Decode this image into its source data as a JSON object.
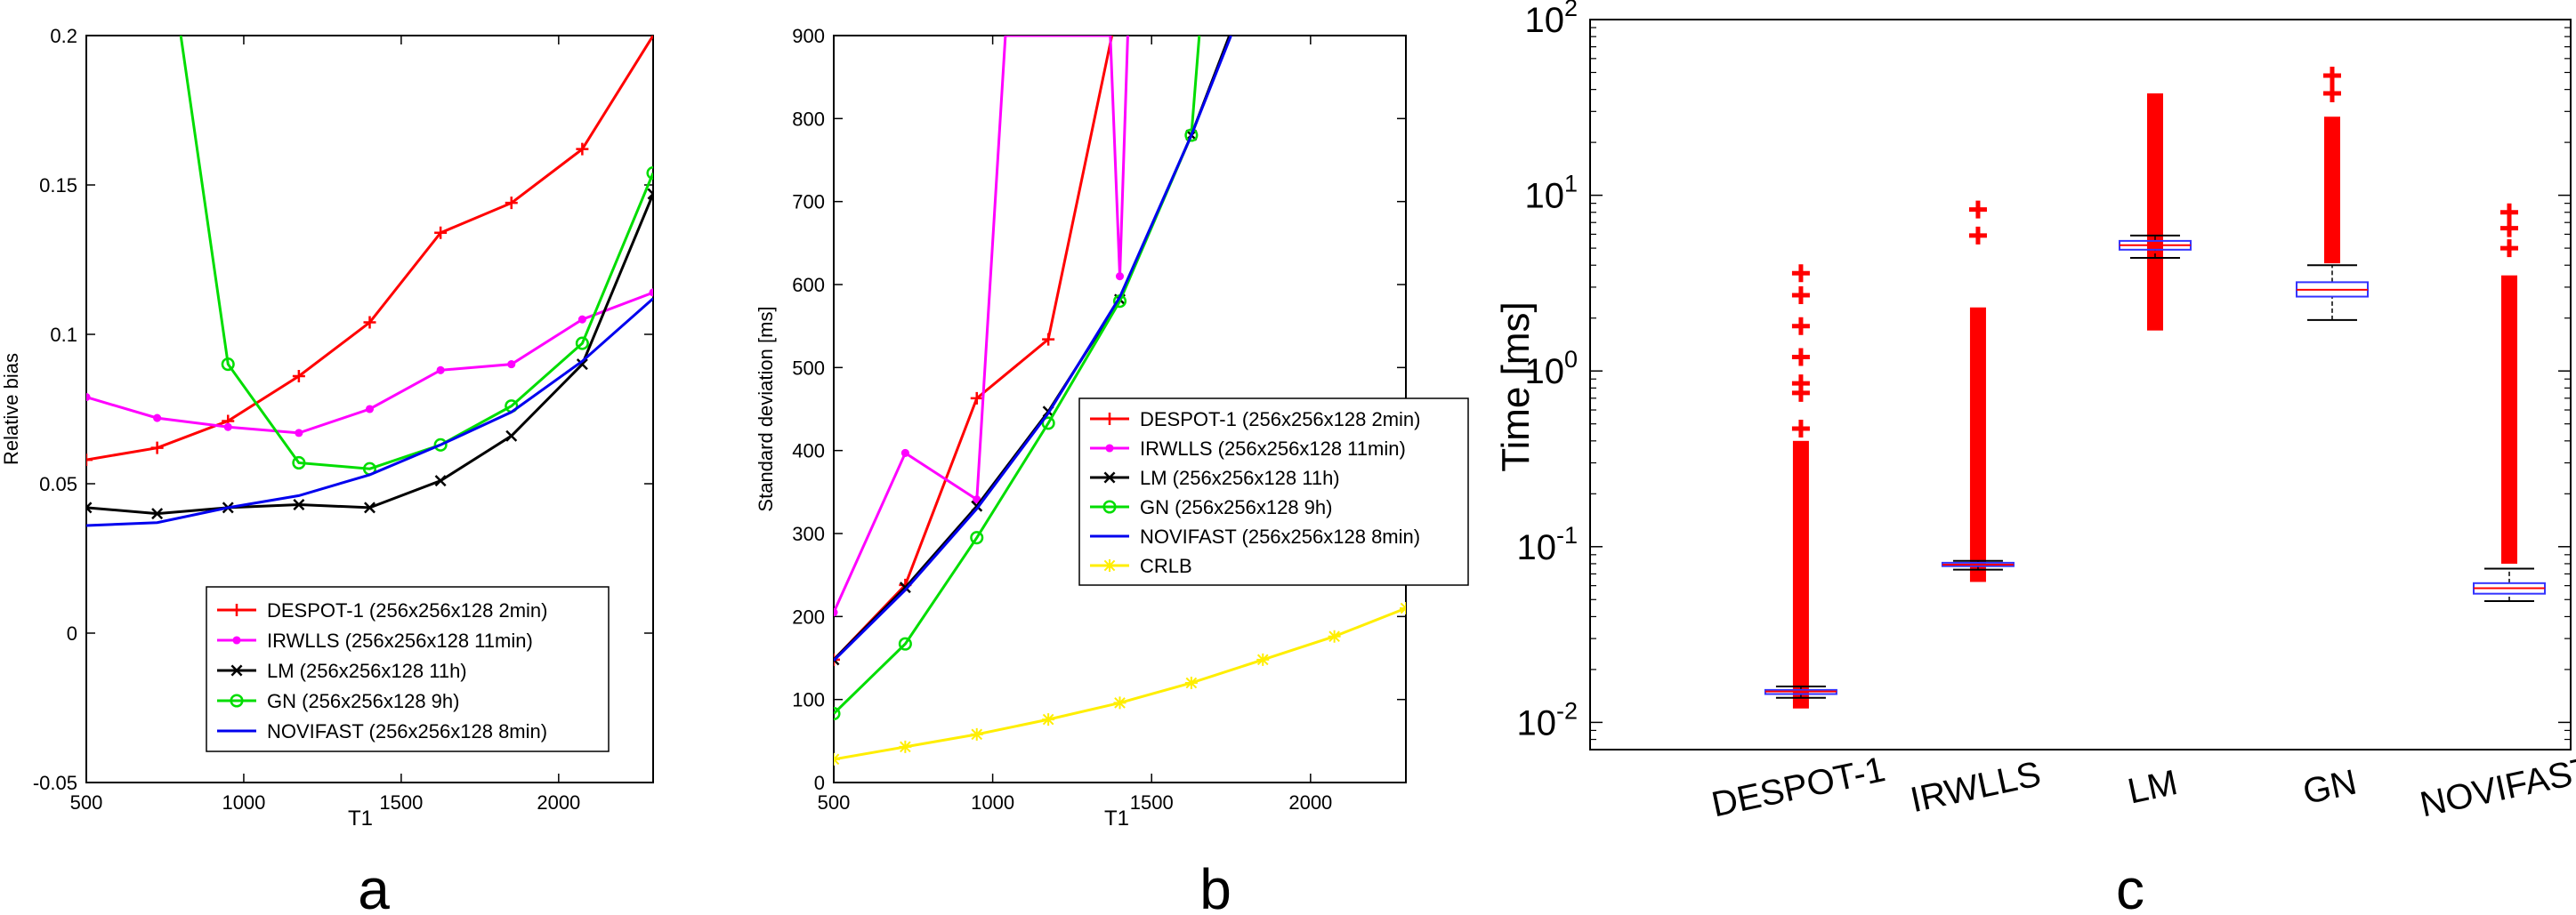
{
  "chart_data": [
    {
      "panel_label": "a",
      "type": "line",
      "xlabel": "T1",
      "ylabel": "Relative bias",
      "xlim": [
        500,
        2300
      ],
      "ylim": [
        -0.05,
        0.2
      ],
      "xticks": [
        "500",
        "1000",
        "1500",
        "2000"
      ],
      "yticks": [
        "-0.05",
        "0",
        "0.05",
        "0.1",
        "0.15",
        "0.2"
      ],
      "legend_position": "bottom-right",
      "series": [
        {
          "name": "DESPOT-1 (256x256x128 2min)",
          "color": "#ff0000",
          "marker": "plus",
          "x": [
            500,
            725,
            950,
            1175,
            1400,
            1625,
            1850,
            2075,
            2300
          ],
          "y": [
            0.058,
            0.062,
            0.071,
            0.086,
            0.104,
            0.134,
            0.144,
            0.162,
            0.2
          ]
        },
        {
          "name": "IRWLLS (256x256x128 11min)",
          "color": "#ff00ff",
          "marker": "dot",
          "x": [
            500,
            725,
            950,
            1175,
            1400,
            1625,
            1850,
            2075,
            2300
          ],
          "y": [
            0.079,
            0.072,
            0.069,
            0.067,
            0.075,
            0.088,
            0.09,
            0.105,
            0.114
          ]
        },
        {
          "name": "LM (256x256x128 11h)",
          "color": "#000000",
          "marker": "x",
          "x": [
            500,
            725,
            950,
            1175,
            1400,
            1625,
            1850,
            2075,
            2300
          ],
          "y": [
            0.042,
            0.04,
            0.042,
            0.043,
            0.042,
            0.051,
            0.066,
            0.09,
            0.147
          ]
        },
        {
          "name": "GN (256x256x128 9h)",
          "color": "#00dd00",
          "marker": "circle",
          "x": [
            800,
            950,
            1175,
            1400,
            1625,
            1850,
            2075,
            2300
          ],
          "y": [
            0.2,
            0.09,
            0.057,
            0.055,
            0.063,
            0.076,
            0.097,
            0.154
          ]
        },
        {
          "name": "NOVIFAST  (256x256x128 8min)",
          "color": "#0000ee",
          "marker": "none",
          "x": [
            500,
            725,
            950,
            1175,
            1400,
            1625,
            1850,
            2075,
            2300
          ],
          "y": [
            0.036,
            0.037,
            0.042,
            0.046,
            0.053,
            0.063,
            0.074,
            0.091,
            0.112
          ]
        }
      ]
    },
    {
      "panel_label": "b",
      "type": "line",
      "xlabel": "T1",
      "ylabel": "Standard deviation [ms]",
      "xlim": [
        500,
        2300
      ],
      "ylim": [
        0,
        900
      ],
      "xticks": [
        "500",
        "1000",
        "1500",
        "2000"
      ],
      "yticks": [
        "0",
        "100",
        "200",
        "300",
        "400",
        "500",
        "600",
        "700",
        "800",
        "900"
      ],
      "legend_position": "right",
      "series": [
        {
          "name": "DESPOT-1 (256x256x128 2min)",
          "color": "#ff0000",
          "marker": "plus",
          "x": [
            500,
            725,
            950,
            1175,
            1375
          ],
          "y": [
            148,
            238,
            463,
            534,
            900
          ]
        },
        {
          "name": "IRWLLS (256x256x128 11min)",
          "color": "#ff00ff",
          "marker": "dot",
          "x": [
            500,
            725,
            950,
            1040,
            1370,
            1400,
            1425
          ],
          "y": [
            205,
            397,
            341,
            900,
            900,
            610,
            900
          ]
        },
        {
          "name": "LM (256x256x128 11h)",
          "color": "#000000",
          "marker": "x",
          "x": [
            500,
            725,
            950,
            1175,
            1400,
            1625,
            1745
          ],
          "y": [
            148,
            235,
            333,
            447,
            582,
            780,
            900
          ]
        },
        {
          "name": "GN (256x256x128 9h)",
          "color": "#00dd00",
          "marker": "circle",
          "x": [
            500,
            725,
            950,
            1175,
            1400,
            1625,
            1650
          ],
          "y": [
            83,
            167,
            295,
            433,
            580,
            780,
            900
          ]
        },
        {
          "name": "NOVIFAST  (256x256x128 8min)",
          "color": "#0000ee",
          "marker": "none",
          "x": [
            500,
            725,
            950,
            1175,
            1400,
            1625,
            1750
          ],
          "y": [
            147,
            232,
            330,
            445,
            585,
            780,
            900
          ]
        },
        {
          "name": "CRLB",
          "color": "#ffee00",
          "marker": "star",
          "x": [
            500,
            725,
            950,
            1175,
            1400,
            1625,
            1850,
            2075,
            2300
          ],
          "y": [
            28,
            43,
            58,
            76,
            96,
            120,
            148,
            176,
            210
          ]
        }
      ]
    },
    {
      "panel_label": "c",
      "type": "box",
      "ylabel": "Time [ms]",
      "yscale": "log",
      "ylim": [
        0.007,
        100
      ],
      "yticks": [
        {
          "base": "10",
          "exp": "-2",
          "value": 0.01
        },
        {
          "base": "10",
          "exp": "-1",
          "value": 0.1
        },
        {
          "base": "10",
          "exp": "0",
          "value": 1
        },
        {
          "base": "10",
          "exp": "1",
          "value": 10
        },
        {
          "base": "10",
          "exp": "2",
          "value": 100
        }
      ],
      "categories": [
        "DESPOT-1",
        "IRWLLS",
        "LM",
        "GN",
        "NOVIFAST"
      ],
      "boxes": [
        {
          "q1": 0.0145,
          "median": 0.015,
          "q3": 0.0153,
          "whisker_low": 0.0138,
          "whisker_high": 0.016,
          "outlier_low": 0.012,
          "outlier_high": 0.4,
          "sparse_outliers": [
            0.47,
            0.75,
            0.85,
            1.2,
            1.8,
            2.7,
            3.6
          ]
        },
        {
          "q1": 0.0775,
          "median": 0.079,
          "q3": 0.081,
          "whisker_low": 0.074,
          "whisker_high": 0.083,
          "outlier_low": 0.063,
          "outlier_high": 2.3,
          "sparse_outliers": [
            5.9,
            8.3
          ]
        },
        {
          "q1": 4.9,
          "median": 5.2,
          "q3": 5.5,
          "whisker_low": 4.4,
          "whisker_high": 5.9,
          "outlier_low": 1.7,
          "outlier_high": 38,
          "sparse_outliers": []
        },
        {
          "q1": 2.65,
          "median": 2.9,
          "q3": 3.2,
          "whisker_low": 1.95,
          "whisker_high": 4.0,
          "outlier_low": 4.1,
          "outlier_high": 28,
          "sparse_outliers": [
            38,
            48
          ]
        },
        {
          "q1": 0.054,
          "median": 0.058,
          "q3": 0.062,
          "whisker_low": 0.049,
          "whisker_high": 0.075,
          "outlier_low": 0.08,
          "outlier_high": 3.5,
          "sparse_outliers": [
            5.0,
            6.5,
            8.0
          ]
        }
      ]
    }
  ]
}
